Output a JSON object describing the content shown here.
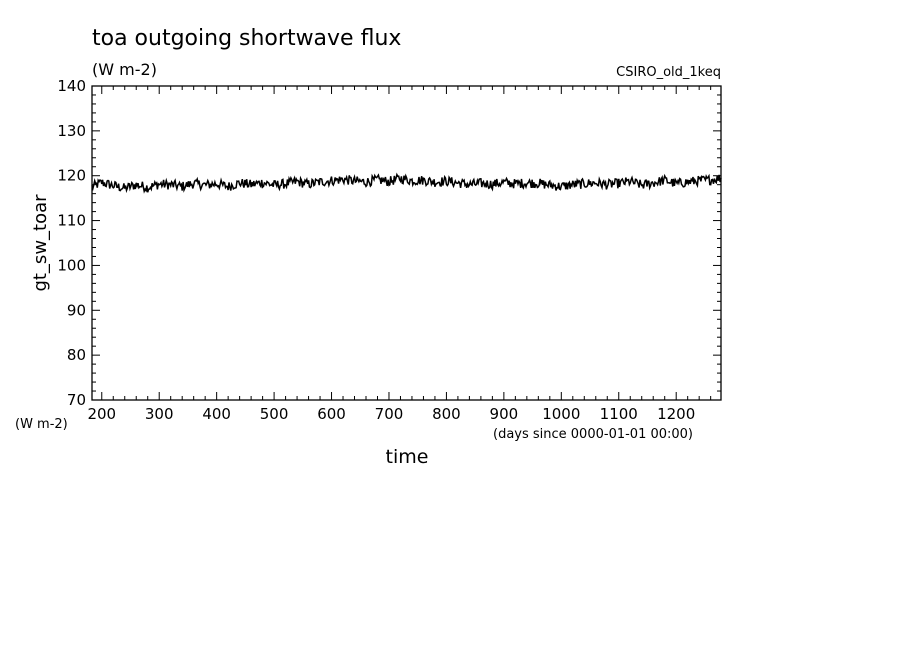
{
  "chart_data": {
    "type": "line",
    "title": "toa outgoing shortwave flux",
    "title_units": "(W m-2)",
    "dataset": "CSIRO_old_1keq",
    "ylabel": "gt_sw_toar",
    "yunits": "(W m-2)",
    "xlabel": "time",
    "xunits": "(days since 0000-01-01 00:00)",
    "xlim": [
      183,
      1278
    ],
    "ylim": [
      70,
      140
    ],
    "xticks": [
      200,
      300,
      400,
      500,
      600,
      700,
      800,
      900,
      1000,
      1100,
      1200
    ],
    "yticks": [
      70,
      80,
      90,
      100,
      110,
      120,
      130,
      140
    ],
    "grid": false,
    "series": [
      {
        "x": [
          183,
          200,
          220,
          240,
          260,
          280,
          300,
          320,
          340,
          360,
          380,
          400,
          420,
          440,
          460,
          480,
          500,
          520,
          540,
          560,
          580,
          600,
          620,
          640,
          660,
          680,
          700,
          720,
          740,
          760,
          780,
          800,
          820,
          840,
          860,
          880,
          900,
          920,
          940,
          960,
          980,
          1000,
          1020,
          1040,
          1060,
          1080,
          1100,
          1120,
          1140,
          1160,
          1180,
          1200,
          1220,
          1240,
          1260,
          1278
        ],
        "y": [
          117.5,
          118.5,
          117.8,
          117.2,
          118.0,
          117.4,
          118.1,
          118.0,
          117.6,
          118.3,
          117.9,
          118.2,
          117.6,
          118.4,
          118.0,
          118.5,
          117.9,
          118.2,
          118.7,
          118.1,
          118.6,
          118.9,
          119.2,
          118.8,
          118.6,
          119.1,
          118.7,
          119.4,
          118.9,
          119.0,
          118.6,
          118.8,
          118.4,
          118.0,
          118.3,
          118.1,
          118.5,
          118.2,
          118.4,
          118.3,
          117.9,
          117.6,
          118.0,
          118.2,
          118.4,
          118.0,
          118.3,
          118.7,
          117.9,
          118.4,
          119.0,
          118.2,
          118.6,
          118.9,
          119.1,
          119.5
        ]
      }
    ]
  }
}
